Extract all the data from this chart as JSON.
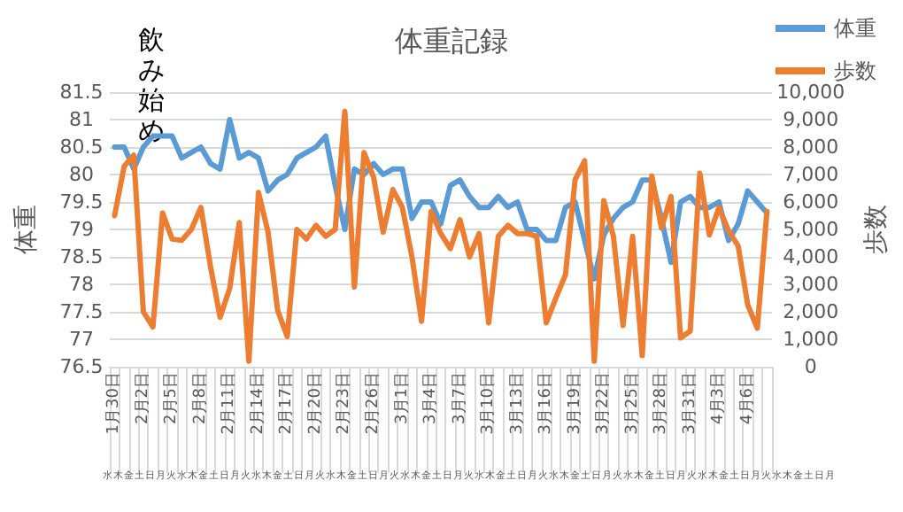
{
  "chart_data": {
    "type": "line",
    "title": "体重記録",
    "ylabel": "体重",
    "y2label": "歩数",
    "annotations": [
      "飲み始め",
      "水木金土日月火水木金土日月火水木金土日月火水木金土日月火水木金土日月火水木金土日月火水木金土日月火水木金土日月火水木金土日月火水木金土日月"
    ],
    "categories": [
      "1月30日",
      null,
      null,
      "2月2日",
      null,
      null,
      "2月5日",
      null,
      null,
      "2月8日",
      null,
      null,
      "2月11日",
      null,
      null,
      "2月14日",
      null,
      null,
      "2月17日",
      null,
      null,
      "2月20日",
      null,
      null,
      "2月23日",
      null,
      null,
      "2月26日",
      null,
      null,
      "3月1日",
      null,
      null,
      "3月4日",
      null,
      null,
      "3月7日",
      null,
      null,
      "3月10日",
      null,
      null,
      "3月13日",
      null,
      null,
      "3月16日",
      null,
      null,
      "3月19日",
      null,
      null,
      "3月22日",
      null,
      null,
      "3月25日",
      null,
      null,
      "3月28日",
      null,
      null,
      "3月31日",
      null,
      null,
      "4月3日",
      null,
      null,
      "4月6日",
      null,
      null
    ],
    "series": [
      {
        "name": "体重",
        "color": "#5b9bd5",
        "values": [
          80.5,
          80.5,
          80.1,
          80.5,
          80.7,
          80.7,
          80.7,
          80.3,
          80.4,
          80.5,
          80.2,
          80.1,
          81.0,
          80.3,
          80.4,
          80.3,
          79.7,
          79.9,
          80.0,
          80.3,
          80.4,
          80.5,
          80.7,
          79.8,
          79.0,
          80.1,
          80.0,
          80.2,
          80.0,
          80.1,
          80.1,
          79.2,
          79.5,
          79.5,
          79.1,
          79.8,
          79.9,
          79.6,
          79.4,
          79.4,
          79.6,
          79.4,
          79.5,
          79.0,
          79.0,
          78.8,
          78.8,
          79.4,
          79.5,
          78.8,
          78.1,
          78.9,
          79.2,
          79.4,
          79.5,
          79.9,
          79.9,
          79.2,
          78.4,
          79.5,
          79.6,
          79.4,
          79.4,
          79.5,
          78.8,
          79.1,
          79.7,
          79.5,
          79.3
        ]
      },
      {
        "name": "歩数",
        "color": "#ed7d31",
        "axis": "y2",
        "values": [
          5500,
          7300,
          7700,
          2000,
          1450,
          5600,
          4650,
          4600,
          5000,
          5800,
          3650,
          1800,
          2850,
          5250,
          200,
          6350,
          4900,
          2050,
          1100,
          5000,
          4650,
          5150,
          4750,
          5000,
          9300,
          2900,
          7800,
          6900,
          4900,
          6450,
          5800,
          4000,
          1650,
          5650,
          4850,
          4300,
          5350,
          4000,
          4850,
          1600,
          4750,
          5150,
          4850,
          4850,
          4750,
          1600,
          2500,
          3350,
          6800,
          7500,
          200,
          6050,
          4750,
          1500,
          4750,
          400,
          6950,
          5050,
          6200,
          1050,
          1300,
          7050,
          4800,
          5800,
          4950,
          4400,
          2250,
          1400,
          5650
        ]
      }
    ],
    "ylim": [
      76.5,
      81.5
    ],
    "yticks": [
      76.5,
      77,
      77.5,
      78,
      78.5,
      79,
      79.5,
      80,
      80.5,
      81,
      81.5
    ],
    "y2lim": [
      0,
      10000
    ],
    "y2ticks": [
      0,
      {
        "value": 1000,
        "label": "1,000"
      },
      {
        "value": 2000,
        "label": "2,000"
      },
      {
        "value": 3000,
        "label": "3,000"
      },
      {
        "value": 4000,
        "label": "4,000"
      },
      {
        "value": 5000,
        "label": "5,000"
      },
      {
        "value": 6000,
        "label": "6,000"
      },
      {
        "value": 7000,
        "label": "7,000"
      },
      {
        "value": 8000,
        "label": "8,000"
      },
      {
        "value": 9000,
        "label": "9,000"
      },
      {
        "value": 10000,
        "label": "10,000"
      }
    ],
    "grid": "y",
    "legend": "top right"
  }
}
